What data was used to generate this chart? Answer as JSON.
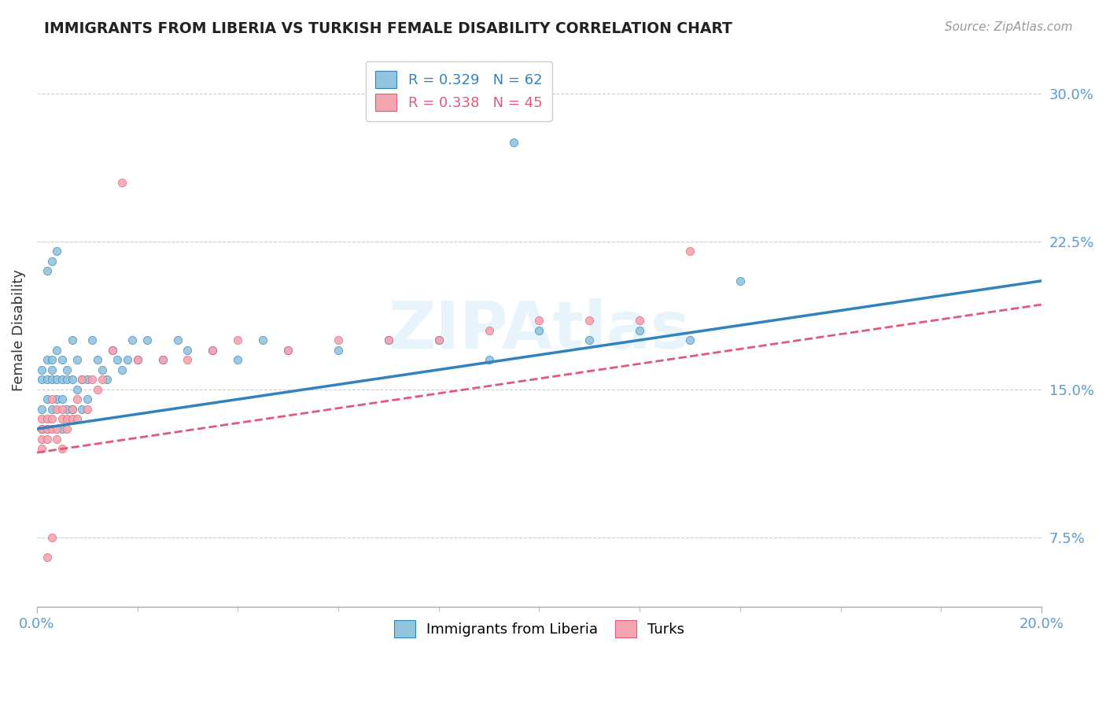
{
  "title": "IMMIGRANTS FROM LIBERIA VS TURKISH FEMALE DISABILITY CORRELATION CHART",
  "source": "Source: ZipAtlas.com",
  "ylabel": "Female Disability",
  "xlim": [
    0.0,
    0.2
  ],
  "ylim": [
    0.04,
    0.32
  ],
  "yticks": [
    0.075,
    0.15,
    0.225,
    0.3
  ],
  "ytick_labels": [
    "7.5%",
    "15.0%",
    "22.5%",
    "30.0%"
  ],
  "background_color": "#ffffff",
  "grid_color": "#cccccc",
  "watermark": "ZIPAtlas",
  "legend1_label": "R = 0.329   N = 62",
  "legend2_label": "R = 0.338   N = 45",
  "series1_color": "#92c5de",
  "series2_color": "#f4a6b0",
  "series1_line_color": "#3182bd",
  "series2_line_color": "#e05a7a",
  "series1_name": "Immigrants from Liberia",
  "series2_name": "Turks",
  "line1_x0": 0.0,
  "line1_y0": 0.13,
  "line1_x1": 0.2,
  "line1_y1": 0.205,
  "line2_x0": 0.0,
  "line2_y0": 0.118,
  "line2_x1": 0.2,
  "line2_y1": 0.193,
  "s1_x": [
    0.001,
    0.001,
    0.001,
    0.001,
    0.002,
    0.002,
    0.002,
    0.002,
    0.003,
    0.003,
    0.003,
    0.003,
    0.004,
    0.004,
    0.004,
    0.005,
    0.005,
    0.005,
    0.005,
    0.006,
    0.006,
    0.006,
    0.007,
    0.007,
    0.007,
    0.008,
    0.008,
    0.009,
    0.009,
    0.01,
    0.01,
    0.011,
    0.012,
    0.013,
    0.014,
    0.015,
    0.016,
    0.017,
    0.018,
    0.019,
    0.02,
    0.022,
    0.025,
    0.028,
    0.03,
    0.035,
    0.04,
    0.045,
    0.05,
    0.06,
    0.07,
    0.08,
    0.09,
    0.1,
    0.11,
    0.12,
    0.13,
    0.002,
    0.003,
    0.004,
    0.095,
    0.14
  ],
  "s1_y": [
    0.14,
    0.155,
    0.16,
    0.13,
    0.155,
    0.165,
    0.145,
    0.13,
    0.16,
    0.155,
    0.14,
    0.165,
    0.17,
    0.155,
    0.145,
    0.155,
    0.165,
    0.145,
    0.13,
    0.16,
    0.155,
    0.14,
    0.175,
    0.155,
    0.14,
    0.165,
    0.15,
    0.155,
    0.14,
    0.155,
    0.145,
    0.175,
    0.165,
    0.16,
    0.155,
    0.17,
    0.165,
    0.16,
    0.165,
    0.175,
    0.165,
    0.175,
    0.165,
    0.175,
    0.17,
    0.17,
    0.165,
    0.175,
    0.17,
    0.17,
    0.175,
    0.175,
    0.165,
    0.18,
    0.175,
    0.18,
    0.175,
    0.21,
    0.215,
    0.22,
    0.275,
    0.205
  ],
  "s2_x": [
    0.001,
    0.001,
    0.001,
    0.001,
    0.002,
    0.002,
    0.002,
    0.003,
    0.003,
    0.003,
    0.004,
    0.004,
    0.004,
    0.005,
    0.005,
    0.005,
    0.006,
    0.006,
    0.007,
    0.007,
    0.008,
    0.008,
    0.009,
    0.01,
    0.011,
    0.012,
    0.013,
    0.015,
    0.017,
    0.02,
    0.025,
    0.03,
    0.035,
    0.04,
    0.05,
    0.06,
    0.07,
    0.08,
    0.09,
    0.1,
    0.11,
    0.12,
    0.13,
    0.003,
    0.002
  ],
  "s2_y": [
    0.13,
    0.135,
    0.12,
    0.125,
    0.135,
    0.125,
    0.13,
    0.135,
    0.13,
    0.145,
    0.14,
    0.125,
    0.13,
    0.135,
    0.14,
    0.12,
    0.135,
    0.13,
    0.14,
    0.135,
    0.145,
    0.135,
    0.155,
    0.14,
    0.155,
    0.15,
    0.155,
    0.17,
    0.255,
    0.165,
    0.165,
    0.165,
    0.17,
    0.175,
    0.17,
    0.175,
    0.175,
    0.175,
    0.18,
    0.185,
    0.185,
    0.185,
    0.22,
    0.075,
    0.065
  ]
}
